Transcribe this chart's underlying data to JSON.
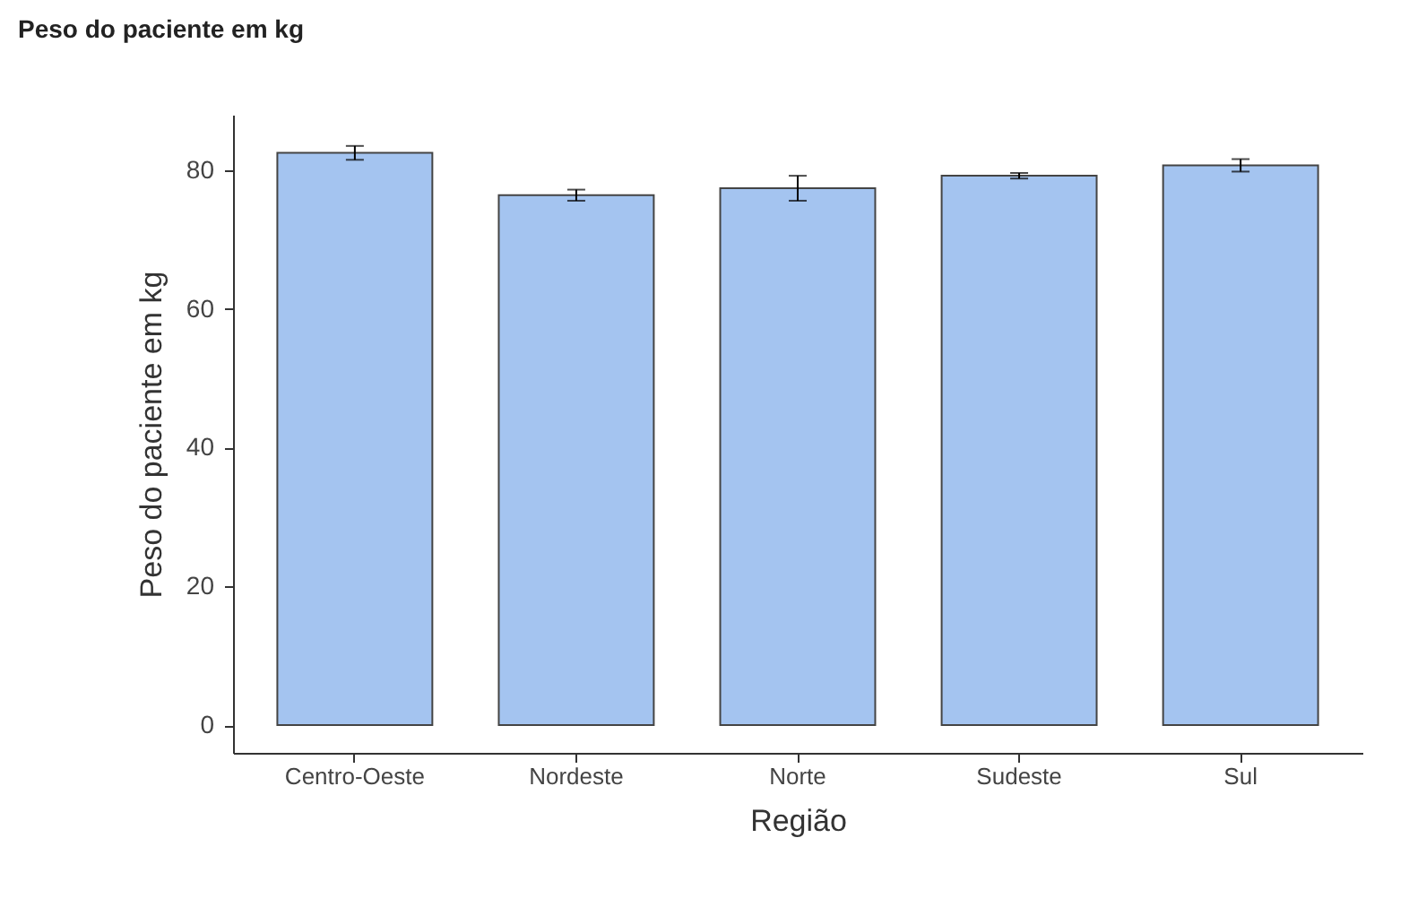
{
  "chart_data": {
    "type": "bar",
    "title": "Peso do paciente em kg",
    "xlabel": "Região",
    "ylabel": "Peso do paciente em kg",
    "categories": [
      "Centro-Oeste",
      "Nordeste",
      "Norte",
      "Sudeste",
      "Sul"
    ],
    "values": [
      82.5,
      76.4,
      77.4,
      79.2,
      80.7
    ],
    "errors": [
      1.0,
      0.8,
      1.8,
      0.4,
      0.9
    ],
    "color": "#a4c4f0",
    "ylim": [
      -4,
      88
    ],
    "yticks": [
      0,
      20,
      40,
      60,
      80
    ],
    "grid": false
  }
}
